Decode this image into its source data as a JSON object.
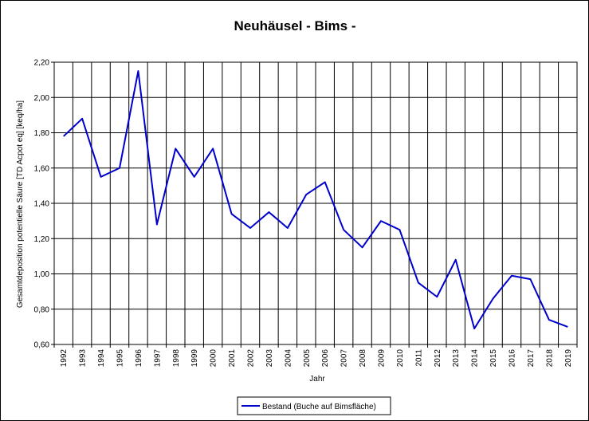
{
  "chart_data": {
    "type": "line",
    "title": "Neuhäusel - Bims -",
    "xlabel": "Jahr",
    "ylabel": "Gesamtdeposition potentielle Säure [TD Acpot eq] [keq/ha]",
    "categories": [
      "1992",
      "1993",
      "1994",
      "1995",
      "1996",
      "1997",
      "1998",
      "1999",
      "2000",
      "2001",
      "2002",
      "2003",
      "2004",
      "2005",
      "2006",
      "2007",
      "2008",
      "2009",
      "2010",
      "2011",
      "2012",
      "2013",
      "2014",
      "2015",
      "2016",
      "2017",
      "2018",
      "2019"
    ],
    "ylim": [
      0.6,
      2.2
    ],
    "yticks": [
      "0,60",
      "0,80",
      "1,00",
      "1,20",
      "1,40",
      "1,60",
      "1,80",
      "2,00",
      "2,20"
    ],
    "grid": true,
    "legend_position": "bottom",
    "series": [
      {
        "name": "Bestand (Buche auf Bimsfläche)",
        "color": "#0000cc",
        "values": [
          1.78,
          1.88,
          1.55,
          1.6,
          2.15,
          1.28,
          1.71,
          1.55,
          1.71,
          1.34,
          1.26,
          1.35,
          1.26,
          1.45,
          1.52,
          1.25,
          1.15,
          1.3,
          1.25,
          0.95,
          0.87,
          1.08,
          0.69,
          0.86,
          0.99,
          0.97,
          0.74,
          0.7
        ]
      }
    ]
  }
}
